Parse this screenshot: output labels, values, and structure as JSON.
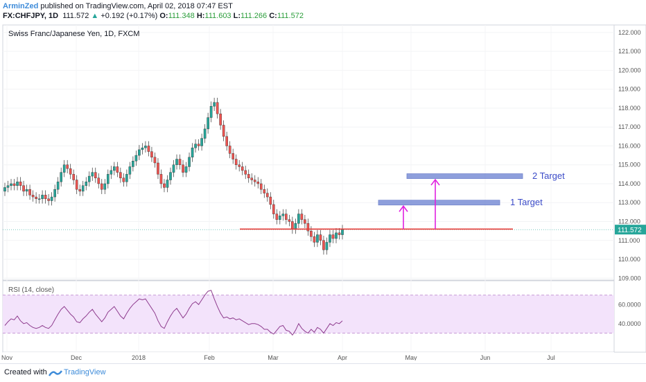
{
  "header": {
    "author": "ArminZed",
    "published": "published on TradingView.com, April 02, 2018 07:47 EST",
    "symbol": "FX:CHFJPY, 1D",
    "price": "111.572",
    "change": "+0.192 (+0.17%)",
    "open_label": "O:",
    "open": "111.348",
    "high_label": "H:",
    "high": "111.603",
    "low_label": "L:",
    "low": "111.266",
    "close_label": "C:",
    "close": "111.572"
  },
  "footer": {
    "created": "Created with",
    "brand": "TradingView"
  },
  "colors": {
    "up": "#26a69a",
    "down": "#ef5350",
    "support": "#e53935",
    "arrow": "#e020e0",
    "target": "#7b8fd6",
    "rsi": "#8e3c8e"
  },
  "chart_data": {
    "type": "candlestick",
    "title": "Swiss Franc/Japanese Yen, 1D, FXCM",
    "ylim": [
      108.9,
      122.4
    ],
    "yticks": [
      "122.000",
      "121.000",
      "120.000",
      "119.000",
      "118.000",
      "117.000",
      "116.000",
      "115.000",
      "114.000",
      "113.000",
      "112.000",
      "111.000",
      "110.000",
      "109.000"
    ],
    "last_price": "111.572",
    "xticks": [
      "Nov",
      "Dec",
      "2018",
      "Feb",
      "Mar",
      "Apr",
      "May",
      "Jun",
      "Jul"
    ],
    "closes": [
      113.8,
      113.9,
      114.0,
      113.9,
      114.1,
      113.9,
      113.6,
      113.7,
      113.4,
      113.3,
      113.2,
      113.2,
      113.4,
      113.2,
      113.1,
      113.3,
      113.7,
      114.1,
      114.6,
      115.0,
      114.8,
      114.5,
      114.2,
      113.7,
      113.6,
      113.9,
      114.1,
      114.4,
      114.6,
      114.3,
      114.0,
      113.7,
      114.0,
      114.5,
      114.7,
      114.9,
      114.6,
      114.3,
      114.1,
      114.5,
      114.9,
      115.2,
      115.5,
      115.8,
      115.9,
      116.0,
      115.7,
      115.4,
      115.1,
      114.5,
      114.0,
      113.8,
      114.2,
      114.6,
      115.0,
      115.3,
      115.0,
      114.6,
      114.9,
      115.4,
      115.9,
      116.1,
      116.0,
      116.4,
      116.9,
      117.5,
      118.1,
      118.3,
      117.7,
      117.1,
      116.5,
      116.0,
      115.6,
      115.3,
      115.0,
      114.9,
      114.7,
      114.5,
      114.3,
      114.2,
      114.1,
      114.0,
      113.7,
      113.5,
      113.3,
      112.9,
      112.4,
      112.1,
      112.3,
      112.4,
      112.1,
      112.0,
      111.6,
      111.9,
      112.4,
      112.1,
      111.9,
      111.5,
      111.2,
      110.9,
      111.3,
      111.0,
      110.5,
      110.9,
      111.3,
      111.1,
      111.4,
      111.3,
      111.572
    ],
    "support_level": 111.6,
    "targets": [
      {
        "label": "1 Target",
        "level": 113.0
      },
      {
        "label": "2 Target",
        "level": 114.4
      }
    ],
    "rsi": {
      "title": "RSI (14, close)",
      "yticks": [
        "60.0000",
        "40.0000"
      ],
      "upper": 70,
      "lower": 30,
      "values": [
        38,
        42,
        45,
        44,
        48,
        43,
        40,
        41,
        38,
        36,
        35,
        36,
        38,
        36,
        35,
        38,
        44,
        50,
        55,
        58,
        54,
        50,
        47,
        42,
        41,
        45,
        48,
        52,
        55,
        50,
        46,
        42,
        46,
        52,
        55,
        58,
        53,
        48,
        45,
        51,
        56,
        60,
        63,
        66,
        65,
        66,
        61,
        56,
        51,
        43,
        37,
        35,
        42,
        48,
        53,
        56,
        51,
        46,
        50,
        56,
        61,
        63,
        60,
        65,
        70,
        74,
        75,
        66,
        58,
        51,
        46,
        47,
        45,
        46,
        44,
        45,
        43,
        41,
        39,
        40,
        40,
        39,
        37,
        34,
        34,
        31,
        29,
        33,
        37,
        38,
        33,
        32,
        28,
        33,
        40,
        35,
        32,
        30,
        34,
        31,
        36,
        34,
        30,
        35,
        40,
        38,
        41,
        40,
        43
      ]
    }
  }
}
